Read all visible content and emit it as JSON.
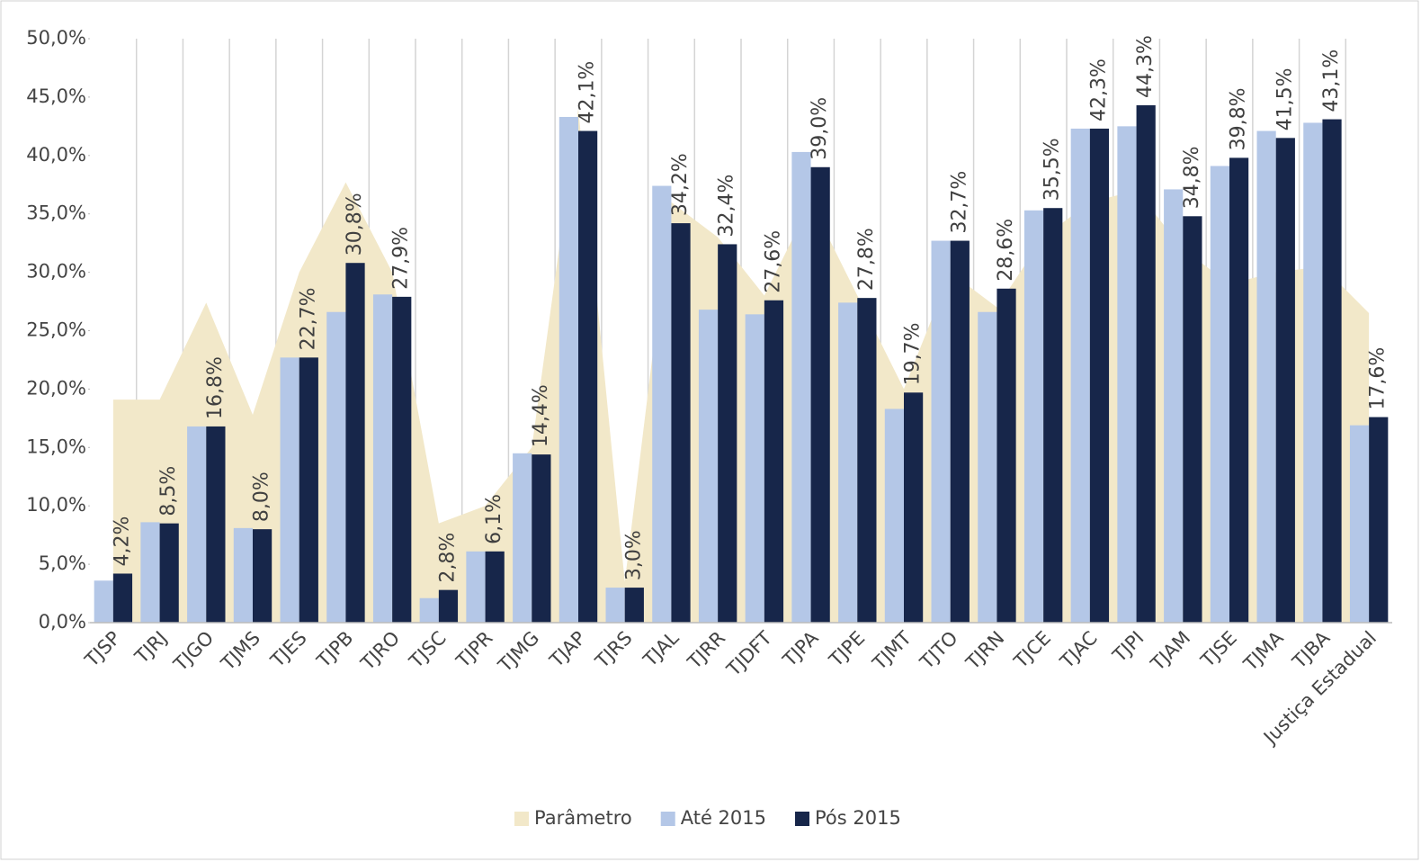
{
  "chart_data": {
    "type": "bar",
    "categories": [
      "TJSP",
      "TJRJ",
      "TJGO",
      "TJMS",
      "TJES",
      "TJPB",
      "TJRO",
      "TJSC",
      "TJPR",
      "TJMG",
      "TJAP",
      "TJRS",
      "TJAL",
      "TJRR",
      "TJDFT",
      "TJPA",
      "TJPE",
      "TJMT",
      "TJTO",
      "TJRN",
      "TJCE",
      "TJAC",
      "TJPI",
      "TJAM",
      "TJSE",
      "TJMA",
      "TJBA",
      "Justiça Estadual"
    ],
    "series": [
      {
        "name": "Parâmetro",
        "type": "area",
        "color": "#f2e8c9",
        "values": [
          19.1,
          19.1,
          27.4,
          17.8,
          30.0,
          37.7,
          30.0,
          8.5,
          10.0,
          15.0,
          44.0,
          3.5,
          36.0,
          33.0,
          28.0,
          36.0,
          28.0,
          20.0,
          30.0,
          27.0,
          33.0,
          36.0,
          37.0,
          32.0,
          29.0,
          30.0,
          30.5,
          26.5
        ]
      },
      {
        "name": "Até 2015",
        "type": "bar",
        "color": "#b4c7e7",
        "values": [
          3.6,
          8.6,
          16.8,
          8.1,
          22.7,
          26.6,
          28.1,
          2.1,
          6.1,
          14.5,
          43.3,
          3.0,
          37.4,
          26.8,
          26.4,
          40.3,
          27.4,
          18.3,
          32.7,
          26.6,
          35.3,
          42.3,
          42.5,
          37.1,
          39.1,
          42.1,
          42.8,
          16.9
        ]
      },
      {
        "name": "Pós 2015",
        "type": "bar",
        "color": "#17264a",
        "values": [
          4.2,
          8.5,
          16.8,
          8.0,
          22.7,
          30.8,
          27.9,
          2.8,
          6.1,
          14.4,
          42.1,
          3.0,
          34.2,
          32.4,
          27.6,
          39.0,
          27.8,
          19.7,
          32.7,
          28.6,
          35.5,
          42.3,
          44.3,
          34.8,
          39.8,
          41.5,
          43.1,
          17.6
        ],
        "value_labels": [
          "4,2%",
          "8,5%",
          "16,8%",
          "8,0%",
          "22,7%",
          "30,8%",
          "27,9%",
          "2,8%",
          "6,1%",
          "14,4%",
          "42,1%",
          "3,0%",
          "34,2%",
          "32,4%",
          "27,6%",
          "39,0%",
          "27,8%",
          "19,7%",
          "32,7%",
          "28,6%",
          "35,5%",
          "42,3%",
          "44,3%",
          "34,8%",
          "39,8%",
          "41,5%",
          "43,1%",
          "17,6%"
        ]
      }
    ],
    "ylim": [
      0,
      50
    ],
    "yticks": [
      {
        "value": 0,
        "label": "0,0%"
      },
      {
        "value": 5,
        "label": "5,0%"
      },
      {
        "value": 10,
        "label": "10,0%"
      },
      {
        "value": 15,
        "label": "15,0%"
      },
      {
        "value": 20,
        "label": "20,0%"
      },
      {
        "value": 25,
        "label": "25,0%"
      },
      {
        "value": 30,
        "label": "30,0%"
      },
      {
        "value": 35,
        "label": "35,0%"
      },
      {
        "value": 40,
        "label": "40,0%"
      },
      {
        "value": 45,
        "label": "45,0%"
      },
      {
        "value": 50,
        "label": "50,0%"
      }
    ],
    "legend": "bottom"
  }
}
